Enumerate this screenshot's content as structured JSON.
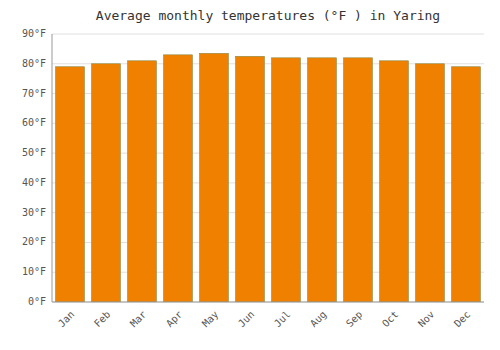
{
  "chart_data": {
    "type": "bar",
    "title": "Average monthly temperatures (°F ) in Yaring",
    "categories": [
      "Jan",
      "Feb",
      "Mar",
      "Apr",
      "May",
      "Jun",
      "Jul",
      "Aug",
      "Sep",
      "Oct",
      "Nov",
      "Dec"
    ],
    "values": [
      79,
      80,
      81,
      83,
      83.5,
      82.5,
      82,
      82,
      82,
      81,
      80,
      79
    ],
    "color": "#F08000",
    "ylim": [
      0,
      90
    ],
    "yticks": [
      {
        "value": 0,
        "label": "0°F"
      },
      {
        "value": 10,
        "label": "10°F"
      },
      {
        "value": 20,
        "label": "20°F"
      },
      {
        "value": 30,
        "label": "30°F"
      },
      {
        "value": 40,
        "label": "40°F"
      },
      {
        "value": 50,
        "label": "50°F"
      },
      {
        "value": 60,
        "label": "60°F"
      },
      {
        "value": 70,
        "label": "70°F"
      },
      {
        "value": 80,
        "label": "80°F"
      },
      {
        "value": 90,
        "label": "90°F"
      }
    ],
    "grid": true
  }
}
